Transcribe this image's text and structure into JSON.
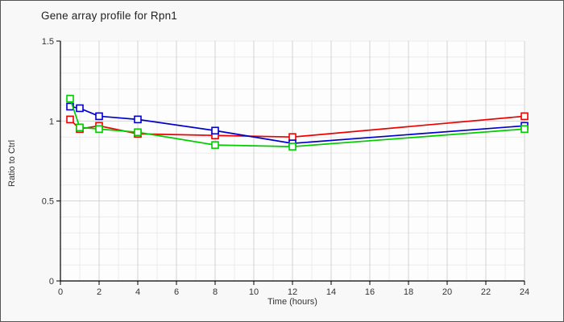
{
  "chart_data": {
    "type": "line",
    "title": "Gene array profile for Rpn1",
    "xlabel": "Time (hours)",
    "ylabel": "Ratio to Ctrl",
    "xlim": [
      0,
      24
    ],
    "ylim": [
      0,
      1.5
    ],
    "x_ticks": [
      0,
      2,
      4,
      6,
      8,
      10,
      12,
      14,
      16,
      18,
      20,
      22,
      24
    ],
    "y_ticks": [
      0,
      0.5,
      1,
      1.5
    ],
    "grid": "on",
    "legend": "none",
    "marker": "open-square",
    "x": [
      0.5,
      1,
      2,
      4,
      8,
      12,
      24
    ],
    "series": [
      {
        "name": "series-red",
        "color": "#ee0000",
        "values": [
          1.01,
          0.95,
          0.97,
          0.92,
          0.91,
          0.9,
          1.03
        ]
      },
      {
        "name": "series-blue",
        "color": "#0000cc",
        "values": [
          1.09,
          1.08,
          1.03,
          1.01,
          0.94,
          0.86,
          0.97
        ]
      },
      {
        "name": "series-green",
        "color": "#00cc00",
        "values": [
          1.14,
          0.96,
          0.95,
          0.93,
          0.85,
          0.84,
          0.95
        ]
      }
    ],
    "colors": {
      "plot_bg": "#fdfdfd",
      "outer_bg": "#f8f8f8",
      "grid_minor": "#ececec",
      "grid_major": "#d2d2d2",
      "axis": "#000000",
      "tick_text": "#333333"
    }
  }
}
